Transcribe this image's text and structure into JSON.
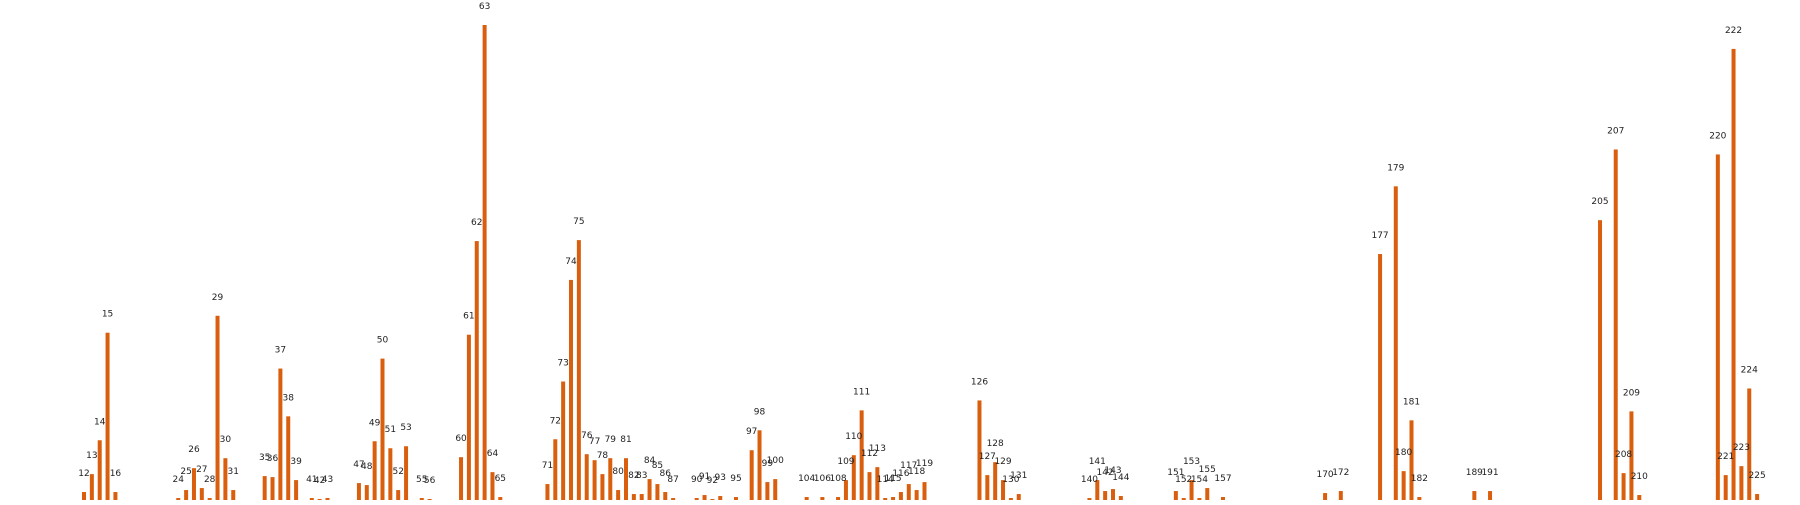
{
  "chart_data": {
    "type": "bar",
    "title": "",
    "xlabel": "",
    "ylabel": "",
    "ylim": [
      0,
      480
    ],
    "grid": false,
    "legend": "none",
    "color": "#d95f0e",
    "bars": [
      {
        "label": "12",
        "x": 12,
        "value": 10
      },
      {
        "label": "13",
        "x": 13,
        "value": 28
      },
      {
        "label": "14",
        "x": 14,
        "value": 62
      },
      {
        "label": "15",
        "x": 15,
        "value": 170
      },
      {
        "label": "16",
        "x": 16,
        "value": 10
      },
      {
        "label": "24",
        "x": 24,
        "value": 4
      },
      {
        "label": "25",
        "x": 25,
        "value": 12
      },
      {
        "label": "26",
        "x": 26,
        "value": 34
      },
      {
        "label": "27",
        "x": 27,
        "value": 14
      },
      {
        "label": "28",
        "x": 28,
        "value": 4
      },
      {
        "label": "29",
        "x": 29,
        "value": 187
      },
      {
        "label": "30",
        "x": 30,
        "value": 44
      },
      {
        "label": "31",
        "x": 31,
        "value": 12
      },
      {
        "label": "35",
        "x": 35,
        "value": 26
      },
      {
        "label": "36",
        "x": 36,
        "value": 25
      },
      {
        "label": "37",
        "x": 37,
        "value": 134
      },
      {
        "label": "38",
        "x": 38,
        "value": 86
      },
      {
        "label": "39",
        "x": 39,
        "value": 22
      },
      {
        "label": "41",
        "x": 41,
        "value": 4
      },
      {
        "label": "42",
        "x": 42,
        "value": 3
      },
      {
        "label": "43",
        "x": 43,
        "value": 4
      },
      {
        "label": "47",
        "x": 47,
        "value": 19
      },
      {
        "label": "48",
        "x": 48,
        "value": 17
      },
      {
        "label": "49",
        "x": 49,
        "value": 61
      },
      {
        "label": "50",
        "x": 50,
        "value": 144
      },
      {
        "label": "51",
        "x": 51,
        "value": 54
      },
      {
        "label": "52",
        "x": 52,
        "value": 12
      },
      {
        "label": "53",
        "x": 53,
        "value": 56
      },
      {
        "label": "55",
        "x": 55,
        "value": 4
      },
      {
        "label": "56",
        "x": 56,
        "value": 3
      },
      {
        "label": "60",
        "x": 60,
        "value": 45
      },
      {
        "label": "61",
        "x": 61,
        "value": 168
      },
      {
        "label": "62",
        "x": 62,
        "value": 262
      },
      {
        "label": "63",
        "x": 63,
        "value": 479
      },
      {
        "label": "64",
        "x": 64,
        "value": 30
      },
      {
        "label": "65",
        "x": 65,
        "value": 5
      },
      {
        "label": "71",
        "x": 71,
        "value": 18
      },
      {
        "label": "72",
        "x": 72,
        "value": 63
      },
      {
        "label": "73",
        "x": 73,
        "value": 121
      },
      {
        "label": "74",
        "x": 74,
        "value": 223
      },
      {
        "label": "75",
        "x": 75,
        "value": 263
      },
      {
        "label": "76",
        "x": 76,
        "value": 48
      },
      {
        "label": "77",
        "x": 77,
        "value": 42
      },
      {
        "label": "78",
        "x": 78,
        "value": 28
      },
      {
        "label": "79",
        "x": 79,
        "value": 44
      },
      {
        "label": "80",
        "x": 80,
        "value": 12
      },
      {
        "label": "81",
        "x": 81,
        "value": 44
      },
      {
        "label": "82",
        "x": 82,
        "value": 8
      },
      {
        "label": "83",
        "x": 83,
        "value": 8
      },
      {
        "label": "84",
        "x": 84,
        "value": 23
      },
      {
        "label": "85",
        "x": 85,
        "value": 18
      },
      {
        "label": "86",
        "x": 86,
        "value": 10
      },
      {
        "label": "87",
        "x": 87,
        "value": 4
      },
      {
        "label": "90",
        "x": 90,
        "value": 4
      },
      {
        "label": "91",
        "x": 91,
        "value": 7
      },
      {
        "label": "92",
        "x": 92,
        "value": 3
      },
      {
        "label": "93",
        "x": 93,
        "value": 6
      },
      {
        "label": "95",
        "x": 95,
        "value": 5
      },
      {
        "label": "97",
        "x": 97,
        "value": 52
      },
      {
        "label": "98",
        "x": 98,
        "value": 72
      },
      {
        "label": "99",
        "x": 99,
        "value": 20
      },
      {
        "label": "100",
        "x": 100,
        "value": 23
      },
      {
        "label": "104",
        "x": 104,
        "value": 5
      },
      {
        "label": "106",
        "x": 106,
        "value": 5
      },
      {
        "label": "108",
        "x": 108,
        "value": 5
      },
      {
        "label": "109",
        "x": 109,
        "value": 22
      },
      {
        "label": "110",
        "x": 110,
        "value": 47
      },
      {
        "label": "111",
        "x": 111,
        "value": 92
      },
      {
        "label": "112",
        "x": 112,
        "value": 30
      },
      {
        "label": "113",
        "x": 113,
        "value": 35
      },
      {
        "label": "114",
        "x": 114,
        "value": 4
      },
      {
        "label": "115",
        "x": 115,
        "value": 5
      },
      {
        "label": "116",
        "x": 116,
        "value": 10
      },
      {
        "label": "117",
        "x": 117,
        "value": 18
      },
      {
        "label": "118",
        "x": 118,
        "value": 12
      },
      {
        "label": "119",
        "x": 119,
        "value": 20
      },
      {
        "label": "126",
        "x": 126,
        "value": 102
      },
      {
        "label": "127",
        "x": 127,
        "value": 27
      },
      {
        "label": "128",
        "x": 128,
        "value": 40
      },
      {
        "label": "129",
        "x": 129,
        "value": 22
      },
      {
        "label": "130",
        "x": 130,
        "value": 4
      },
      {
        "label": "131",
        "x": 131,
        "value": 8
      },
      {
        "label": "140",
        "x": 140,
        "value": 4
      },
      {
        "label": "141",
        "x": 141,
        "value": 22
      },
      {
        "label": "142",
        "x": 142,
        "value": 11
      },
      {
        "label": "143",
        "x": 143,
        "value": 13
      },
      {
        "label": "144",
        "x": 144,
        "value": 6
      },
      {
        "label": "151",
        "x": 151,
        "value": 11
      },
      {
        "label": "152",
        "x": 152,
        "value": 4
      },
      {
        "label": "153",
        "x": 153,
        "value": 22
      },
      {
        "label": "154",
        "x": 154,
        "value": 4
      },
      {
        "label": "155",
        "x": 155,
        "value": 14
      },
      {
        "label": "157",
        "x": 157,
        "value": 5
      },
      {
        "label": "170",
        "x": 170,
        "value": 9
      },
      {
        "label": "172",
        "x": 172,
        "value": 11
      },
      {
        "label": "177",
        "x": 177,
        "value": 249
      },
      {
        "label": "179",
        "x": 179,
        "value": 317
      },
      {
        "label": "180",
        "x": 180,
        "value": 31
      },
      {
        "label": "181",
        "x": 181,
        "value": 82
      },
      {
        "label": "182",
        "x": 182,
        "value": 5
      },
      {
        "label": "189",
        "x": 189,
        "value": 11
      },
      {
        "label": "191",
        "x": 191,
        "value": 11
      },
      {
        "label": "205",
        "x": 205,
        "value": 283
      },
      {
        "label": "207",
        "x": 207,
        "value": 354
      },
      {
        "label": "208",
        "x": 208,
        "value": 29
      },
      {
        "label": "209",
        "x": 209,
        "value": 91
      },
      {
        "label": "210",
        "x": 210,
        "value": 7
      },
      {
        "label": "220",
        "x": 220,
        "value": 349
      },
      {
        "label": "221",
        "x": 221,
        "value": 27
      },
      {
        "label": "222",
        "x": 222,
        "value": 455
      },
      {
        "label": "223",
        "x": 223,
        "value": 36
      },
      {
        "label": "224",
        "x": 224,
        "value": 114
      },
      {
        "label": "225",
        "x": 225,
        "value": 8
      }
    ]
  }
}
